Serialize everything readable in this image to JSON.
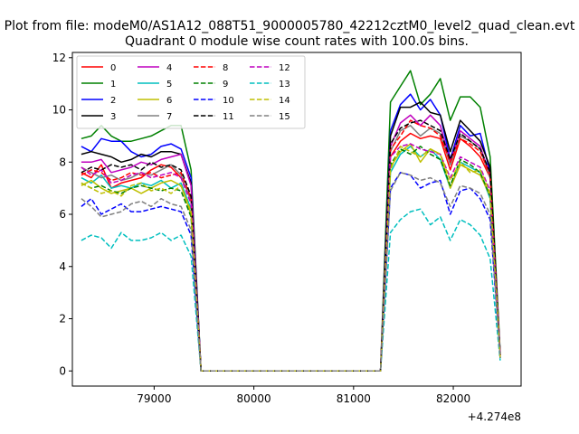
{
  "figure": {
    "suptitle": "Plot from file: modeM0/AS1A12_088T51_9000005780_42212cztM0_level2_quad_clean.evt",
    "title": "Quadrant 0 module wise count rates with 100.0s bins."
  },
  "chart_data": {
    "type": "line",
    "title": "Quadrant 0 module wise count rates with 100.0s bins.",
    "xlabel": "",
    "ylabel": "",
    "x_offset_label": "+4.274e8",
    "x_offset": 427400000,
    "xlim": [
      78180,
      82680
    ],
    "ylim": [
      -0.58,
      12.2
    ],
    "xticks": [
      79000,
      80000,
      81000,
      82000
    ],
    "xtick_labels": [
      "79000",
      "80000",
      "81000",
      "82000"
    ],
    "yticks": [
      0,
      2,
      4,
      6,
      8,
      10,
      12
    ],
    "ytick_labels": [
      "0",
      "2",
      "4",
      "6",
      "8",
      "10",
      "12"
    ],
    "grid": false,
    "legend": {
      "position": "top-left",
      "columns": 4
    },
    "x": [
      78270,
      78370,
      78470,
      78570,
      78670,
      78770,
      78870,
      78970,
      79070,
      79170,
      79270,
      79370,
      79470,
      79570,
      79670,
      79770,
      79870,
      79970,
      80070,
      80170,
      80270,
      80370,
      80470,
      80570,
      80670,
      80770,
      80870,
      80970,
      81070,
      81170,
      81270,
      81370,
      81470,
      81570,
      81670,
      81770,
      81870,
      81970,
      82070,
      82170,
      82270,
      82370,
      82470
    ],
    "series": [
      {
        "name": "0",
        "color": "#ff0000",
        "dash": "solid",
        "values": [
          7.6,
          7.4,
          7.9,
          7.0,
          7.2,
          7.3,
          7.4,
          7.7,
          7.9,
          7.8,
          7.4,
          6.6,
          0,
          0,
          0,
          0,
          0,
          0,
          0,
          0,
          0,
          0,
          0,
          0,
          0,
          0,
          0,
          0,
          0,
          0,
          0,
          8.2,
          8.8,
          9.1,
          8.9,
          9.0,
          8.9,
          7.7,
          8.9,
          8.6,
          8.2,
          7.4,
          0.6
        ]
      },
      {
        "name": "1",
        "color": "#008000",
        "dash": "solid",
        "values": [
          8.9,
          9.0,
          9.4,
          9.0,
          8.8,
          8.8,
          8.9,
          9.0,
          9.2,
          9.4,
          9.4,
          7.7,
          0,
          0,
          0,
          0,
          0,
          0,
          0,
          0,
          0,
          0,
          0,
          0,
          0,
          0,
          0,
          0,
          0,
          0,
          0,
          10.3,
          10.9,
          11.5,
          10.2,
          10.6,
          11.2,
          9.6,
          10.5,
          10.5,
          10.1,
          8.2,
          0.7
        ]
      },
      {
        "name": "2",
        "color": "#0000ff",
        "dash": "solid",
        "values": [
          8.6,
          8.4,
          8.9,
          8.8,
          8.8,
          8.4,
          8.2,
          8.3,
          8.6,
          8.7,
          8.5,
          7.4,
          0,
          0,
          0,
          0,
          0,
          0,
          0,
          0,
          0,
          0,
          0,
          0,
          0,
          0,
          0,
          0,
          0,
          0,
          0,
          9.2,
          10.2,
          10.6,
          10.0,
          10.4,
          9.8,
          8.1,
          9.4,
          9.0,
          9.1,
          7.6,
          0.6
        ]
      },
      {
        "name": "3",
        "color": "#000000",
        "dash": "solid",
        "values": [
          8.3,
          8.4,
          8.3,
          8.2,
          8.0,
          8.1,
          8.3,
          8.2,
          8.4,
          8.4,
          8.3,
          7.2,
          0,
          0,
          0,
          0,
          0,
          0,
          0,
          0,
          0,
          0,
          0,
          0,
          0,
          0,
          0,
          0,
          0,
          0,
          0,
          9.0,
          10.1,
          10.1,
          10.3,
          9.9,
          9.8,
          8.4,
          9.6,
          9.2,
          8.8,
          7.8,
          0.6
        ]
      },
      {
        "name": "4",
        "color": "#bf00bf",
        "dash": "solid",
        "values": [
          8.0,
          8.0,
          8.1,
          7.6,
          7.7,
          7.8,
          8.0,
          7.9,
          8.1,
          8.2,
          8.3,
          7.1,
          0,
          0,
          0,
          0,
          0,
          0,
          0,
          0,
          0,
          0,
          0,
          0,
          0,
          0,
          0,
          0,
          0,
          0,
          0,
          8.6,
          9.5,
          9.8,
          9.4,
          9.8,
          9.4,
          8.0,
          9.2,
          8.9,
          8.6,
          7.5,
          0.6
        ]
      },
      {
        "name": "5",
        "color": "#00bfbf",
        "dash": "solid",
        "values": [
          7.4,
          7.2,
          7.5,
          7.0,
          7.1,
          7.0,
          7.2,
          7.1,
          7.3,
          7.0,
          7.2,
          6.2,
          0,
          0,
          0,
          0,
          0,
          0,
          0,
          0,
          0,
          0,
          0,
          0,
          0,
          0,
          0,
          0,
          0,
          0,
          0,
          7.6,
          8.3,
          8.6,
          8.2,
          8.5,
          8.1,
          7.0,
          8.0,
          7.8,
          7.6,
          6.6,
          0.5
        ]
      },
      {
        "name": "6",
        "color": "#bfbf00",
        "dash": "solid",
        "values": [
          7.1,
          7.3,
          7.0,
          6.8,
          6.9,
          7.0,
          6.8,
          7.0,
          7.2,
          7.3,
          7.1,
          6.0,
          0,
          0,
          0,
          0,
          0,
          0,
          0,
          0,
          0,
          0,
          0,
          0,
          0,
          0,
          0,
          0,
          0,
          0,
          0,
          7.8,
          8.4,
          8.7,
          8.0,
          8.5,
          8.3,
          7.0,
          7.9,
          7.7,
          7.5,
          6.7,
          0.5
        ]
      },
      {
        "name": "7",
        "color": "#808080",
        "dash": "solid",
        "values": [
          7.8,
          7.6,
          7.4,
          7.5,
          7.3,
          7.4,
          7.6,
          7.5,
          7.7,
          7.9,
          7.5,
          6.5,
          0,
          0,
          0,
          0,
          0,
          0,
          0,
          0,
          0,
          0,
          0,
          0,
          0,
          0,
          0,
          0,
          0,
          0,
          0,
          8.4,
          9.2,
          9.4,
          9.0,
          9.3,
          9.1,
          7.9,
          9.0,
          8.8,
          8.5,
          7.4,
          0.6
        ]
      },
      {
        "name": "8",
        "color": "#ff0000",
        "dash": "dashed",
        "values": [
          7.5,
          7.7,
          7.6,
          7.3,
          7.4,
          7.6,
          7.5,
          7.6,
          7.4,
          7.5,
          7.6,
          6.6,
          0,
          0,
          0,
          0,
          0,
          0,
          0,
          0,
          0,
          0,
          0,
          0,
          0,
          0,
          0,
          0,
          0,
          0,
          0,
          8.5,
          9.0,
          9.6,
          9.4,
          9.3,
          9.0,
          8.0,
          8.9,
          8.7,
          8.4,
          7.5,
          0.6
        ]
      },
      {
        "name": "9",
        "color": "#008000",
        "dash": "dashed",
        "values": [
          7.2,
          7.0,
          7.1,
          6.9,
          6.8,
          7.0,
          7.1,
          7.0,
          6.9,
          7.0,
          6.9,
          5.9,
          0,
          0,
          0,
          0,
          0,
          0,
          0,
          0,
          0,
          0,
          0,
          0,
          0,
          0,
          0,
          0,
          0,
          0,
          0,
          7.9,
          8.5,
          8.3,
          8.6,
          8.3,
          8.1,
          7.1,
          8.1,
          7.9,
          7.6,
          6.7,
          0.5
        ]
      },
      {
        "name": "10",
        "color": "#0000ff",
        "dash": "dashed",
        "values": [
          6.3,
          6.6,
          6.0,
          6.2,
          6.4,
          6.1,
          6.1,
          6.2,
          6.3,
          6.2,
          6.1,
          5.2,
          0,
          0,
          0,
          0,
          0,
          0,
          0,
          0,
          0,
          0,
          0,
          0,
          0,
          0,
          0,
          0,
          0,
          0,
          0,
          7.0,
          7.6,
          7.5,
          7.0,
          7.2,
          7.3,
          6.0,
          6.9,
          7.0,
          6.6,
          5.8,
          0.5
        ]
      },
      {
        "name": "11",
        "color": "#000000",
        "dash": "dashed",
        "values": [
          7.6,
          7.8,
          7.7,
          7.9,
          7.8,
          7.9,
          7.7,
          8.0,
          7.8,
          7.9,
          7.7,
          6.7,
          0,
          0,
          0,
          0,
          0,
          0,
          0,
          0,
          0,
          0,
          0,
          0,
          0,
          0,
          0,
          0,
          0,
          0,
          0,
          8.7,
          9.3,
          9.5,
          9.6,
          9.4,
          9.2,
          8.1,
          9.1,
          8.8,
          8.5,
          7.6,
          0.6
        ]
      },
      {
        "name": "12",
        "color": "#bf00bf",
        "dash": "dashed",
        "values": [
          7.8,
          7.5,
          7.7,
          7.2,
          7.3,
          7.5,
          7.6,
          7.4,
          7.5,
          7.6,
          7.4,
          6.4,
          0,
          0,
          0,
          0,
          0,
          0,
          0,
          0,
          0,
          0,
          0,
          0,
          0,
          0,
          0,
          0,
          0,
          0,
          0,
          8.2,
          8.6,
          8.7,
          8.5,
          8.4,
          8.3,
          7.4,
          8.2,
          8.0,
          7.8,
          6.9,
          0.6
        ]
      },
      {
        "name": "13",
        "color": "#00bfbf",
        "dash": "dashed",
        "values": [
          5.0,
          5.2,
          5.1,
          4.7,
          5.3,
          5.0,
          5.0,
          5.1,
          5.3,
          5.0,
          5.2,
          4.4,
          0,
          0,
          0,
          0,
          0,
          0,
          0,
          0,
          0,
          0,
          0,
          0,
          0,
          0,
          0,
          0,
          0,
          0,
          0,
          5.3,
          5.8,
          6.1,
          6.2,
          5.6,
          5.9,
          5.0,
          5.8,
          5.6,
          5.2,
          4.3,
          0.4
        ]
      },
      {
        "name": "14",
        "color": "#bfbf00",
        "dash": "dashed",
        "values": [
          7.2,
          7.0,
          6.8,
          6.9,
          6.7,
          7.1,
          7.2,
          6.9,
          7.0,
          6.8,
          7.1,
          6.1,
          0,
          0,
          0,
          0,
          0,
          0,
          0,
          0,
          0,
          0,
          0,
          0,
          0,
          0,
          0,
          0,
          0,
          0,
          0,
          7.7,
          8.6,
          8.4,
          8.2,
          8.5,
          8.3,
          7.3,
          8.0,
          7.6,
          7.7,
          6.8,
          0.5
        ]
      },
      {
        "name": "15",
        "color": "#808080",
        "dash": "dashed",
        "values": [
          6.6,
          6.3,
          5.9,
          6.0,
          6.1,
          6.4,
          6.5,
          6.3,
          6.6,
          6.4,
          6.3,
          5.4,
          0,
          0,
          0,
          0,
          0,
          0,
          0,
          0,
          0,
          0,
          0,
          0,
          0,
          0,
          0,
          0,
          0,
          0,
          0,
          6.9,
          7.6,
          7.5,
          7.3,
          7.4,
          7.2,
          6.3,
          7.1,
          7.0,
          6.8,
          6.0,
          0.5
        ]
      }
    ]
  }
}
